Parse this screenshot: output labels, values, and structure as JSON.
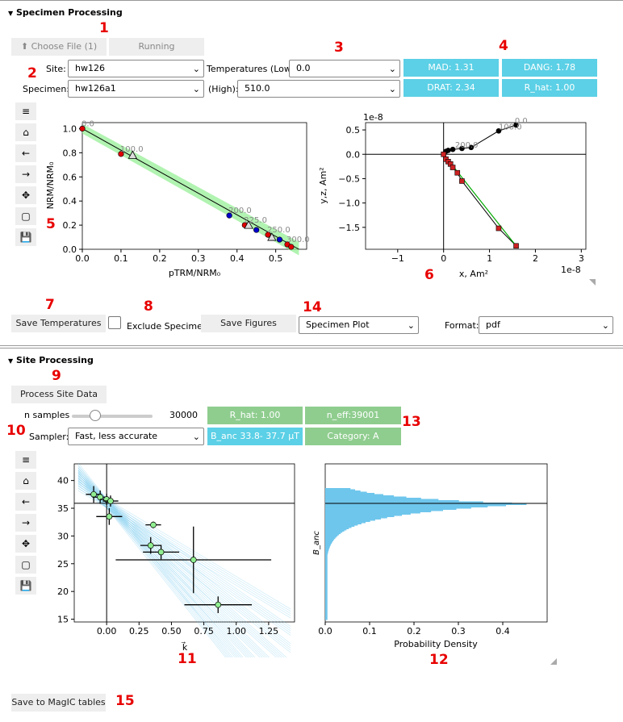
{
  "specimen_section": {
    "title": "Specimen Processing",
    "choose_file": "Choose File (1)",
    "running": "Running",
    "site_label": "Site:",
    "site_value": "hw126",
    "specimen_label": "Specimen:",
    "specimen_value": "hw126a1",
    "temp_low_label": "Temperatures (Low):",
    "temp_low_value": "0.0",
    "temp_high_label": "(High):",
    "temp_high_value": "510.0",
    "mad": "MAD: 1.31",
    "dang": "DANG: 1.78",
    "drat": "DRAT: 2.34",
    "rhat": "R_hat: 1.00",
    "save_temperatures": "Save Temperatures",
    "exclude_specimen": "Exclude Specimen",
    "save_figures": "Save Figures",
    "plot_select": "Specimen Plot",
    "format_label": "Format:",
    "format_value": "pdf"
  },
  "site_section": {
    "title": "Site Processing",
    "process_site": "Process Site Data",
    "n_samples_label": "n samples",
    "n_samples_value": "30000",
    "sampler_label": "Sampler:",
    "sampler_value": "Fast, less accurate",
    "rhat": "R_hat: 1.00",
    "neff": "n_eff:39001",
    "banc": "B_anc 33.8- 37.7 μT",
    "category": "Category: A",
    "save_magic": "Save to MagIC tables"
  },
  "annotations": [
    "1",
    "2",
    "3",
    "4",
    "5",
    "6",
    "7",
    "8",
    "9",
    "10",
    "11",
    "12",
    "13",
    "14",
    "15"
  ],
  "colors": {
    "cyan": "#5bd0e6",
    "green": "#8fcd8f",
    "red_annot": "#e80000"
  },
  "icons": [
    "menu-icon",
    "home-icon",
    "back-arrow-icon",
    "forward-arrow-icon",
    "pan-icon",
    "zoom-rect-icon",
    "save-icon"
  ],
  "chart_data": [
    {
      "type": "scatter",
      "title": "",
      "xlabel": "pTRM/NRM₀",
      "ylabel": "NRM/NRM₀",
      "xlim": [
        0,
        0.58
      ],
      "ylim": [
        0,
        1.05
      ],
      "xticks": [
        "0.0",
        "0.1",
        "0.2",
        "0.3",
        "0.4",
        "0.5"
      ],
      "yticks": [
        "0.0",
        "0.2",
        "0.4",
        "0.6",
        "0.8",
        "1.0"
      ],
      "points": [
        {
          "x": 0.0,
          "y": 1.0,
          "label": "0.0"
        },
        {
          "x": 0.1,
          "y": 0.79,
          "label": "100.0"
        },
        {
          "x": 0.38,
          "y": 0.28,
          "label": "200.0"
        },
        {
          "x": 0.42,
          "y": 0.2,
          "label": "225.0"
        },
        {
          "x": 0.45,
          "y": 0.16,
          "label": ""
        },
        {
          "x": 0.48,
          "y": 0.12,
          "label": "250.0"
        },
        {
          "x": 0.51,
          "y": 0.08,
          "label": ""
        },
        {
          "x": 0.53,
          "y": 0.04,
          "label": "300.0"
        },
        {
          "x": 0.54,
          "y": 0.02,
          "label": ""
        }
      ]
    },
    {
      "type": "line",
      "xlabel": "x, Am²",
      "ylabel": "y,z, Am²",
      "scale_label": "1e-8",
      "xlim": [
        -1.7,
        3.1
      ],
      "ylim": [
        -1.95,
        0.65
      ],
      "xticks": [
        "−1",
        "0",
        "1",
        "2",
        "3"
      ],
      "yticks": [
        "0.5",
        "0.0",
        "−0.5",
        "−1.0",
        "−1.5"
      ],
      "series": [
        {
          "values_xy": [
            [
              0,
              0
            ],
            [
              0.05,
              0.06
            ],
            [
              0.1,
              0.08
            ],
            [
              0.2,
              0.1
            ],
            [
              0.4,
              0.12
            ],
            [
              0.6,
              0.14
            ],
            [
              1.2,
              0.48
            ],
            [
              1.58,
              0.6
            ]
          ]
        },
        {
          "values_xy": [
            [
              0,
              0
            ],
            [
              0.05,
              -0.1
            ],
            [
              0.1,
              -0.15
            ],
            [
              0.15,
              -0.2
            ],
            [
              0.2,
              -0.27
            ],
            [
              0.3,
              -0.38
            ],
            [
              0.4,
              -0.55
            ],
            [
              1.2,
              -1.52
            ],
            [
              1.58,
              -1.88
            ]
          ]
        }
      ]
    },
    {
      "type": "scatter",
      "xlabel": "k⃗",
      "ylabel": "",
      "xlim": [
        -0.25,
        1.45
      ],
      "ylim": [
        14.5,
        43
      ],
      "xticks": [
        "0.00",
        "0.25",
        "0.50",
        "0.75",
        "1.00",
        "1.25"
      ],
      "yticks": [
        "40",
        "35",
        "30",
        "25",
        "20",
        "15"
      ],
      "hline": 35.9,
      "points": [
        {
          "x": -0.1,
          "y": 37.5
        },
        {
          "x": -0.05,
          "y": 37
        },
        {
          "x": 0.0,
          "y": 36.6
        },
        {
          "x": 0.03,
          "y": 36.3
        },
        {
          "x": 0.02,
          "y": 33.5
        },
        {
          "x": 0.36,
          "y": 32
        },
        {
          "x": 0.34,
          "y": 28.3
        },
        {
          "x": 0.42,
          "y": 27.1
        },
        {
          "x": 0.67,
          "y": 25.7
        },
        {
          "x": 0.86,
          "y": 17.6
        }
      ]
    },
    {
      "type": "bar",
      "xlabel": "Probability Density",
      "ylabel": "B_anc",
      "xlim": [
        0,
        0.5
      ],
      "xticks": [
        "0.0",
        "0.1",
        "0.2",
        "0.3",
        "0.4"
      ],
      "hline": 35.9
    }
  ]
}
